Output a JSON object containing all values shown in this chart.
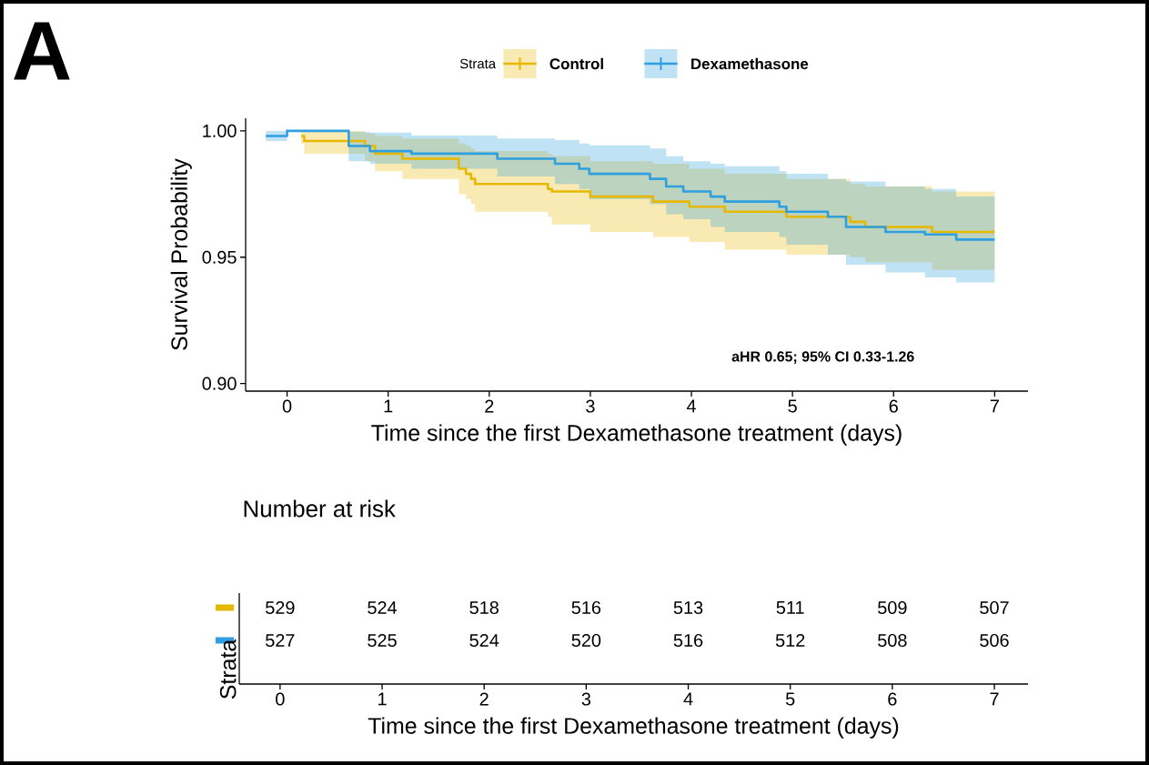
{
  "chart_data": [
    {
      "type": "step",
      "xlabel": "Time since the first Dexamethasone treatment (days)",
      "ylabel": "Survival Probability",
      "legend_title": "Strata",
      "legend": "top",
      "xlim": [
        -0.41,
        7.33
      ],
      "ylim": [
        0.897,
        1.005
      ],
      "xticks": [
        0,
        1,
        2,
        3,
        4,
        5,
        6,
        7
      ],
      "yticks": [
        {
          "value": 0.9,
          "label": "0.90"
        },
        {
          "value": 0.95,
          "label": "0.95"
        },
        {
          "value": 1.0,
          "label": "1.00"
        }
      ],
      "annotations": [
        "A",
        "aHR 0.65; 95% CI 0.33-1.26"
      ],
      "series": [
        {
          "name": "Control",
          "color": "#e7b800",
          "x": [
            0.14,
            0.17,
            0.77,
            0.87,
            1.14,
            1.7,
            1.77,
            1.82,
            1.86,
            2.58,
            2.62,
            3.0,
            3.62,
            3.98,
            4.33,
            4.94,
            5.57,
            5.72,
            6.38,
            7.0
          ],
          "values": [
            0.998,
            0.996,
            0.994,
            0.991,
            0.989,
            0.985,
            0.983,
            0.981,
            0.979,
            0.977,
            0.976,
            0.974,
            0.972,
            0.97,
            0.968,
            0.966,
            0.964,
            0.962,
            0.96,
            0.96
          ],
          "lower": [
            0.995,
            0.991,
            0.988,
            0.984,
            0.981,
            0.975,
            0.973,
            0.971,
            0.968,
            0.966,
            0.963,
            0.96,
            0.958,
            0.956,
            0.953,
            0.951,
            0.95,
            0.948,
            0.945,
            0.945
          ],
          "upper": [
            1.0,
            1.0,
            0.999,
            0.998,
            0.997,
            0.995,
            0.994,
            0.993,
            0.992,
            0.991,
            0.99,
            0.988,
            0.987,
            0.985,
            0.983,
            0.981,
            0.979,
            0.978,
            0.976,
            0.976
          ]
        },
        {
          "name": "Dexamethasone",
          "color": "#2e9fdf",
          "x": [
            -0.21,
            0.0,
            0.61,
            0.82,
            1.23,
            2.08,
            2.65,
            2.89,
            2.99,
            3.59,
            3.75,
            3.92,
            4.19,
            4.33,
            4.87,
            4.94,
            5.35,
            5.53,
            5.92,
            6.31,
            6.62,
            7.0
          ],
          "values": [
            0.998,
            1.0,
            0.994,
            0.992,
            0.991,
            0.989,
            0.987,
            0.985,
            0.983,
            0.981,
            0.978,
            0.976,
            0.974,
            0.972,
            0.97,
            0.968,
            0.966,
            0.962,
            0.96,
            0.959,
            0.957,
            0.957
          ],
          "lower": [
            0.996,
            1.0,
            0.988,
            0.987,
            0.985,
            0.982,
            0.979,
            0.977,
            0.973,
            0.971,
            0.967,
            0.965,
            0.962,
            0.96,
            0.958,
            0.955,
            0.951,
            0.947,
            0.944,
            0.942,
            0.94,
            0.94
          ],
          "upper": [
            1.0,
            1.0,
            0.9996,
            0.9993,
            0.9982,
            0.997,
            0.9964,
            0.995,
            0.9943,
            0.993,
            0.99,
            0.988,
            0.987,
            0.986,
            0.984,
            0.983,
            0.981,
            0.98,
            0.978,
            0.977,
            0.974,
            0.974
          ]
        }
      ]
    },
    {
      "type": "heatmap",
      "title": "Number at risk",
      "ylabel": "Strata",
      "xlabel": "Time since the first Dexamethasone treatment (days)",
      "data_labels": true,
      "categories": [
        "0",
        "1",
        "2",
        "3",
        "4",
        "5",
        "6",
        "7"
      ],
      "y_categories": [
        null,
        null
      ],
      "colors": [
        "#e7b800",
        "#2e9fdf"
      ],
      "cells": [
        [
          529,
          524,
          518,
          516,
          513,
          511,
          509,
          507
        ],
        [
          527,
          525,
          524,
          520,
          516,
          512,
          508,
          506
        ]
      ]
    }
  ]
}
